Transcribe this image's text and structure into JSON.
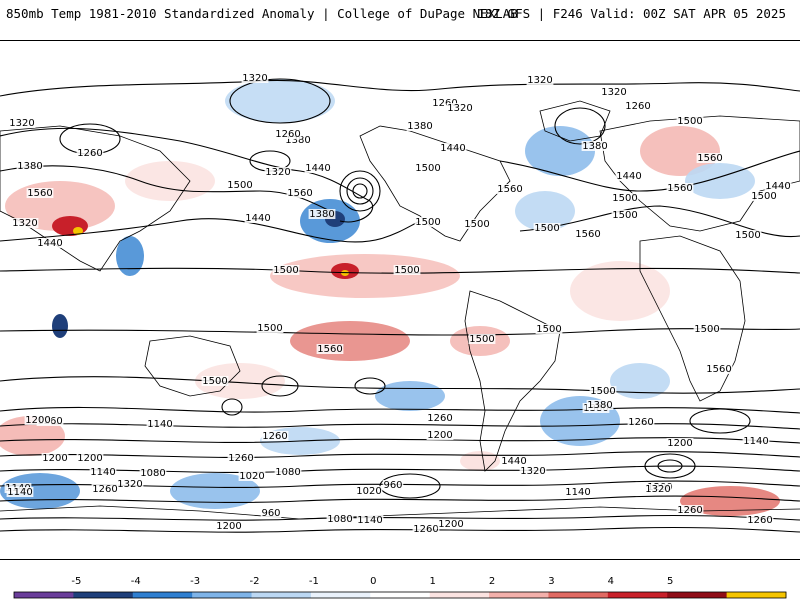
{
  "header": {
    "title_left": "850mb Temp 1981-2010 Standardized Anomaly | College of DuPage NEXLAB",
    "title_right": "18Z GFS | F246 Valid: 00Z SAT APR 05 2025"
  },
  "colorbar": {
    "ticks": [
      "-5",
      "-4",
      "-3",
      "-2",
      "-1",
      "0",
      "1",
      "2",
      "3",
      "4",
      "5"
    ],
    "colors": [
      "#6a3d9a",
      "#1f3f7a",
      "#2f7fd0",
      "#7fb4e8",
      "#bcd8f3",
      "#eaf2fb",
      "#ffffff",
      "#fbe3e1",
      "#f3b0ab",
      "#e06a63",
      "#c8202a",
      "#8f0d17",
      "#f5c400"
    ]
  },
  "contours": {
    "labels": [
      {
        "t": "1320"
      },
      {
        "t": "1320"
      },
      {
        "t": "1320"
      },
      {
        "t": "1260"
      },
      {
        "t": "1380"
      },
      {
        "t": "1440"
      },
      {
        "t": "1320"
      },
      {
        "t": "1260"
      },
      {
        "t": "1500"
      },
      {
        "t": "1560"
      },
      {
        "t": "1440"
      },
      {
        "t": "1380"
      },
      {
        "t": "1260"
      },
      {
        "t": "1320"
      },
      {
        "t": "1440"
      },
      {
        "t": "1380"
      },
      {
        "t": "1320"
      },
      {
        "t": "1500"
      },
      {
        "t": "1560"
      },
      {
        "t": "1500"
      },
      {
        "t": "1500"
      },
      {
        "t": "1500"
      },
      {
        "t": "1500"
      },
      {
        "t": "1500"
      },
      {
        "t": "1500"
      },
      {
        "t": "1500"
      },
      {
        "t": "1500"
      },
      {
        "t": "1560"
      },
      {
        "t": "1560"
      },
      {
        "t": "1500"
      },
      {
        "t": "1500"
      },
      {
        "t": "1500"
      },
      {
        "t": "1500"
      },
      {
        "t": "1560"
      },
      {
        "t": "1500"
      },
      {
        "t": "1380"
      },
      {
        "t": "1260"
      },
      {
        "t": "1200"
      },
      {
        "t": "1140"
      },
      {
        "t": "1140"
      },
      {
        "t": "1320"
      },
      {
        "t": "1140"
      },
      {
        "t": "1080"
      },
      {
        "t": "1260"
      },
      {
        "t": "1200"
      },
      {
        "t": "1140"
      },
      {
        "t": "1080"
      },
      {
        "t": "1020"
      },
      {
        "t": "1260"
      },
      {
        "t": "1200"
      },
      {
        "t": "1260"
      },
      {
        "t": "960"
      },
      {
        "t": "1020"
      },
      {
        "t": "1080"
      },
      {
        "t": "1140"
      },
      {
        "t": "1200"
      },
      {
        "t": "1260"
      },
      {
        "t": "1440"
      },
      {
        "t": "1320"
      },
      {
        "t": "1260"
      },
      {
        "t": "1200"
      },
      {
        "t": "1140"
      },
      {
        "t": "1200"
      },
      {
        "t": "1320"
      },
      {
        "t": "1260"
      },
      {
        "t": "1380"
      },
      {
        "t": "1440"
      },
      {
        "t": "1500"
      },
      {
        "t": "1560"
      },
      {
        "t": "1560"
      },
      {
        "t": "1500"
      },
      {
        "t": "1380"
      },
      {
        "t": "1260"
      },
      {
        "t": "960"
      },
      {
        "t": "1140"
      },
      {
        "t": "1200"
      },
      {
        "t": "1500"
      },
      {
        "t": "1440"
      },
      {
        "t": "1560"
      },
      {
        "t": "1440"
      },
      {
        "t": "1320"
      },
      {
        "t": "1380"
      },
      {
        "t": "1260"
      },
      {
        "t": "1200"
      },
      {
        "t": "1260"
      }
    ]
  }
}
